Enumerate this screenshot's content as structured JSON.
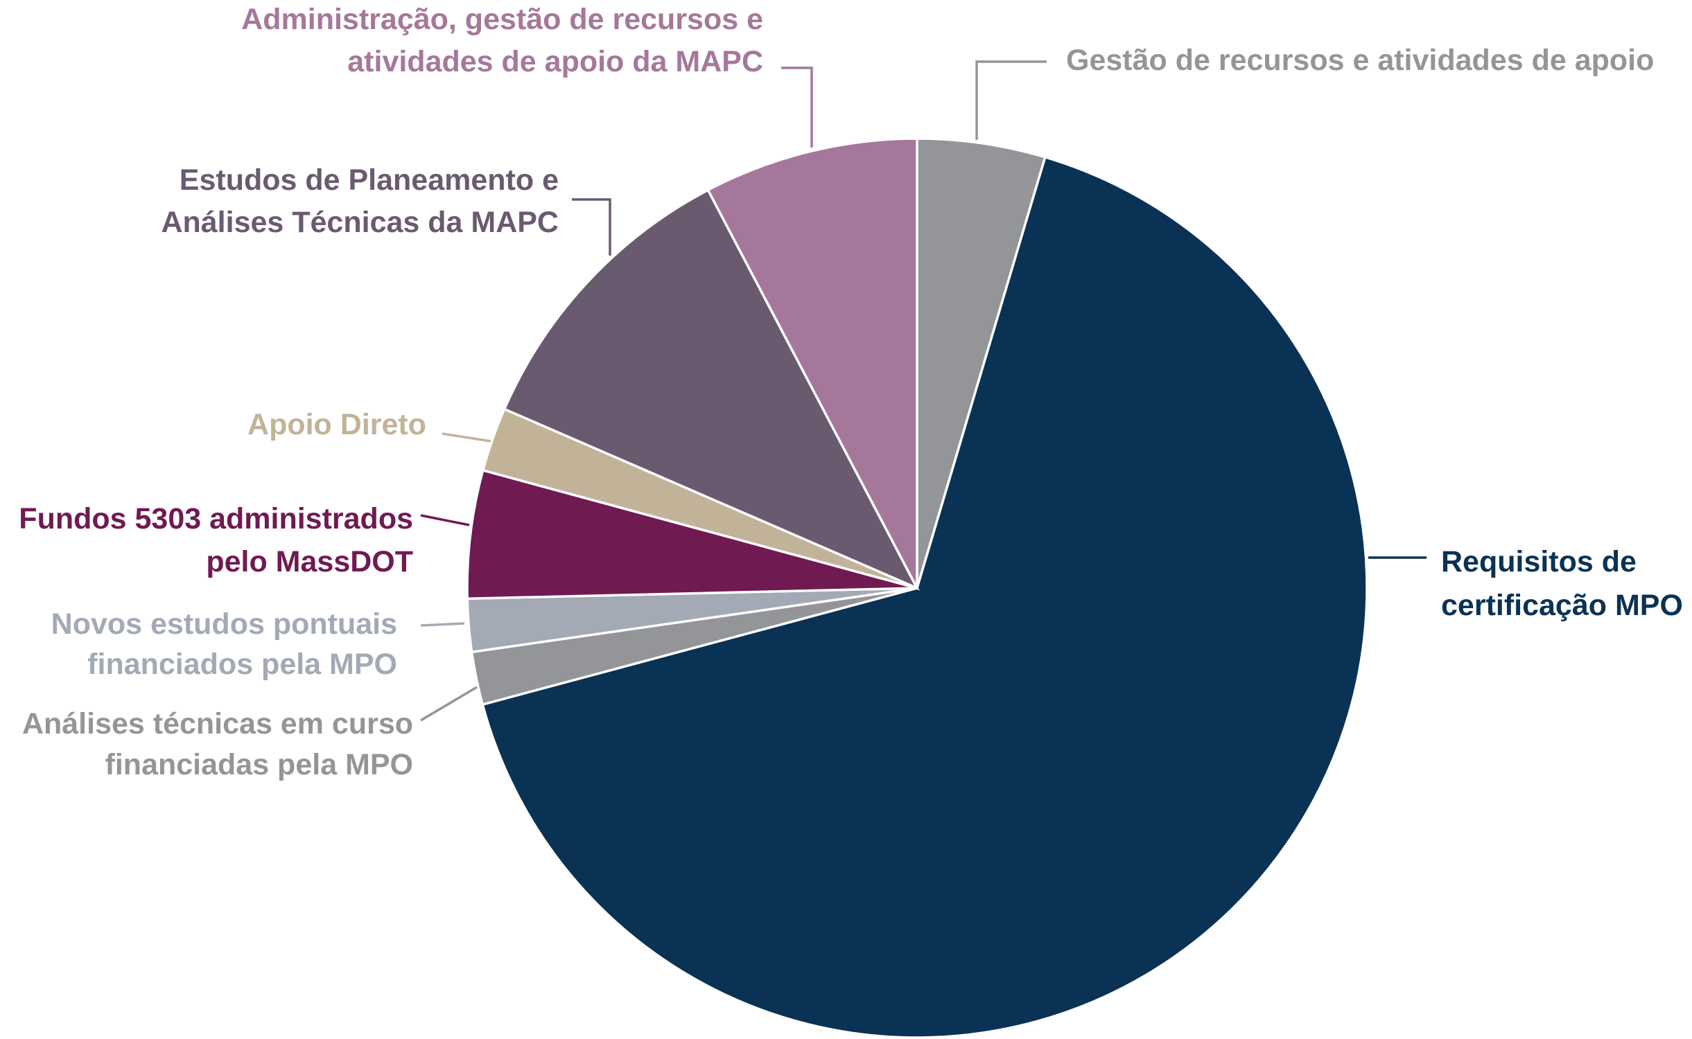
{
  "chart_data": {
    "type": "pie",
    "start_angle": "top, clockwise",
    "slices": [
      {
        "label": [
          "Gestão de recursos e atividades de apoio"
        ],
        "value": 4.6,
        "color": "#939598"
      },
      {
        "label": [
          "Requisitos de",
          "certificação MPO"
        ],
        "value": 66.3,
        "color": "#0a3254"
      },
      {
        "label": [
          "Análises técnicas em curso",
          "financiadas pela MPO"
        ],
        "value": 1.9,
        "color": "#939598"
      },
      {
        "label": [
          "Novos estudos pontuais",
          "financiados pela MPO"
        ],
        "value": 1.9,
        "color": "#a3a9b5"
      },
      {
        "label": [
          "Fundos 5303 administrados",
          "pelo MassDOT"
        ],
        "value": 4.6,
        "color": "#701a52"
      },
      {
        "label": [
          "Apoio Direto"
        ],
        "value": 2.3,
        "color": "#c2b398"
      },
      {
        "label": [
          "Estudos de Planeamento e",
          "Análises Técnicas da MAPC"
        ],
        "value": 10.8,
        "color": "#6a5a70"
      },
      {
        "label": [
          "Administração, gestão de recursos e",
          "atividades de apoio da MAPC"
        ],
        "value": 7.7,
        "color": "#a5789b"
      }
    ]
  }
}
